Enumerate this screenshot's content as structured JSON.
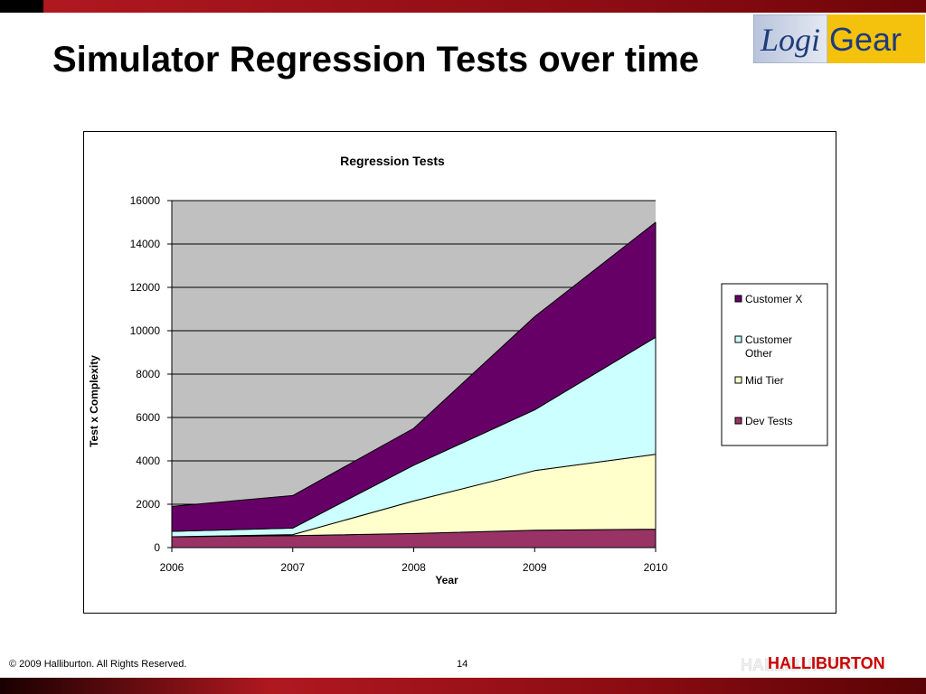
{
  "slide": {
    "title": "Simulator Regression Tests over time",
    "footer_copyright": "© 2009 Halliburton. All Rights Reserved.",
    "page_number": "14"
  },
  "logos": {
    "logigear": {
      "part1": "Logi",
      "part2": "Gear"
    },
    "halliburton": "HALLIBURTON"
  },
  "colors": {
    "plot_background": "#c0c0c0",
    "customer_x": "#660066",
    "customer_other": "#ccffff",
    "mid_tier": "#ffffcc",
    "dev_tests": "#993366"
  },
  "chart_data": {
    "type": "area",
    "stacked": true,
    "title": "Regression Tests",
    "xlabel": "Year",
    "ylabel": "Test x Complexity",
    "categories": [
      "2006",
      "2007",
      "2008",
      "2009",
      "2010"
    ],
    "ylim": [
      0,
      16000
    ],
    "yticks": [
      0,
      2000,
      4000,
      6000,
      8000,
      10000,
      12000,
      14000,
      16000
    ],
    "grid": true,
    "legend_position": "right",
    "series": [
      {
        "name": "Dev Tests",
        "values": [
          500,
          550,
          650,
          800,
          850
        ]
      },
      {
        "name": "Mid Tier",
        "values": [
          0,
          50,
          1500,
          2750,
          3450
        ]
      },
      {
        "name": "Customer Other",
        "values": [
          250,
          300,
          1650,
          2800,
          5400
        ]
      },
      {
        "name": "Customer X",
        "values": [
          1150,
          1500,
          1700,
          4300,
          5300
        ]
      }
    ],
    "legend_order": [
      "Customer X",
      "Customer Other",
      "Mid Tier",
      "Dev Tests"
    ]
  }
}
